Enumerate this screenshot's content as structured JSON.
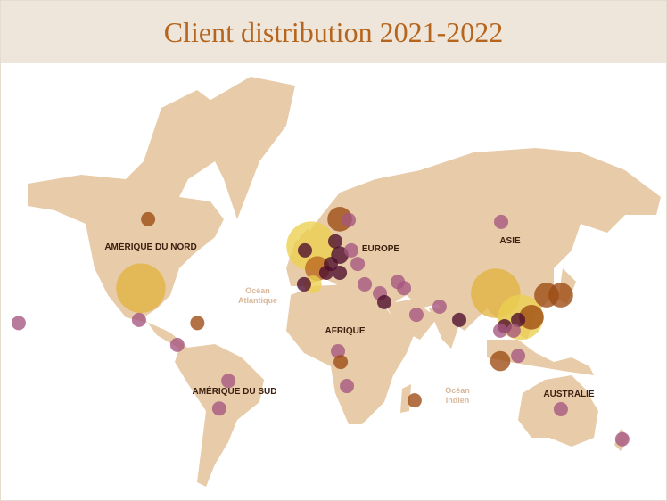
{
  "header": {
    "title": "Client distribution 2021-2022"
  },
  "labels": {
    "north_america": "AMÉRIQUE DU NORD",
    "south_america": "AMÉRIQUE DU SUD",
    "europe": "EUROPE",
    "africa": "AFRIQUE",
    "asia": "ASIE",
    "australia": "AUSTRALIE",
    "atlantic": "Océan Atlantique",
    "indian": "Océan Indien"
  },
  "chart_data": {
    "type": "bubble-map",
    "points": [
      {
        "lon": -157,
        "lat": 21,
        "size": 1,
        "color": "#a5567f"
      },
      {
        "lon": -86,
        "lat": 60.4,
        "size": 1,
        "color": "#9c4a12"
      },
      {
        "lon": -90,
        "lat": 37,
        "size": 12,
        "color": "#e2b440"
      },
      {
        "lon": -91,
        "lat": 22.5,
        "size": 1,
        "color": "#a5567f"
      },
      {
        "lon": -59,
        "lat": 21,
        "size": 1,
        "color": "#9c4a12"
      },
      {
        "lon": -70,
        "lat": 9.9,
        "size": 1,
        "color": "#a5567f"
      },
      {
        "lon": -42,
        "lat": -9,
        "size": 1,
        "color": "#a5567f"
      },
      {
        "lon": -47,
        "lat": -23,
        "size": 1,
        "color": "#a5567f"
      },
      {
        "lon": 3.4,
        "lat": 52.6,
        "size": 12,
        "color": "#ecd050"
      },
      {
        "lon": 19.1,
        "lat": 60.4,
        "size": 3,
        "color": "#9c4a12"
      },
      {
        "lon": 24,
        "lat": 60.2,
        "size": 1,
        "color": "#a5567f"
      },
      {
        "lon": 6.8,
        "lat": 44.8,
        "size": 3,
        "color": "#b8671e"
      },
      {
        "lon": 0,
        "lat": 51.2,
        "size": 1,
        "color": "#4b0c2b"
      },
      {
        "lon": 16.6,
        "lat": 54.1,
        "size": 1,
        "color": "#4b0c2b"
      },
      {
        "lon": 19.1,
        "lat": 49.6,
        "size": 1.5,
        "color": "#4b0c2b"
      },
      {
        "lon": 14.2,
        "lat": 46.5,
        "size": 1,
        "color": "#4b0c2b"
      },
      {
        "lon": 19.1,
        "lat": 43.2,
        "size": 1,
        "color": "#4b0c2b"
      },
      {
        "lon": 11.7,
        "lat": 43.2,
        "size": 1,
        "color": "#4b0c2b"
      },
      {
        "lon": 25.4,
        "lat": 51.2,
        "size": 1,
        "color": "#a5567f"
      },
      {
        "lon": 28.9,
        "lat": 46.5,
        "size": 1,
        "color": "#a5567f"
      },
      {
        "lon": 4.4,
        "lat": 38.6,
        "size": 1.5,
        "color": "#ecd050"
      },
      {
        "lon": -0.5,
        "lat": 38.6,
        "size": 1,
        "color": "#4b0c2b"
      },
      {
        "lon": 32.8,
        "lat": 38.6,
        "size": 1,
        "color": "#a5567f"
      },
      {
        "lon": 41.1,
        "lat": 34.8,
        "size": 1,
        "color": "#a5567f"
      },
      {
        "lon": 43.5,
        "lat": 30.9,
        "size": 1,
        "color": "#4b0c2b"
      },
      {
        "lon": 50.9,
        "lat": 39.6,
        "size": 1,
        "color": "#a5567f"
      },
      {
        "lon": 54.3,
        "lat": 37,
        "size": 1,
        "color": "#a5567f"
      },
      {
        "lon": 61.1,
        "lat": 25,
        "size": 1,
        "color": "#a5567f"
      },
      {
        "lon": 73.8,
        "lat": 28.8,
        "size": 1,
        "color": "#a5567f"
      },
      {
        "lon": 84.6,
        "lat": 22.5,
        "size": 1,
        "color": "#4b0c2b"
      },
      {
        "lon": 107.6,
        "lat": 59.7,
        "size": 1,
        "color": "#a5567f"
      },
      {
        "lon": 104.6,
        "lat": 34.8,
        "size": 12,
        "color": "#e2b440"
      },
      {
        "lon": 118.3,
        "lat": 23.8,
        "size": 10,
        "color": "#ecd050"
      },
      {
        "lon": 124.2,
        "lat": 23.8,
        "size": 3,
        "color": "#9c4a12"
      },
      {
        "lon": 116.9,
        "lat": 22.5,
        "size": 1,
        "color": "#4b0c2b"
      },
      {
        "lon": 109.5,
        "lat": 19.4,
        "size": 1,
        "color": "#4b0c2b"
      },
      {
        "lon": 107.1,
        "lat": 17.2,
        "size": 1,
        "color": "#a5567f"
      },
      {
        "lon": 114.4,
        "lat": 17.2,
        "size": 1,
        "color": "#a5567f"
      },
      {
        "lon": 132.5,
        "lat": 34,
        "size": 3,
        "color": "#9c4a12"
      },
      {
        "lon": 140.3,
        "lat": 34,
        "size": 3,
        "color": "#9c4a12"
      },
      {
        "lon": 116.9,
        "lat": 4.2,
        "size": 1,
        "color": "#a5567f"
      },
      {
        "lon": 107.1,
        "lat": 1.4,
        "size": 2,
        "color": "#9c4a12"
      },
      {
        "lon": 18.1,
        "lat": 6.6,
        "size": 1,
        "color": "#a5567f"
      },
      {
        "lon": 19.6,
        "lat": 0.9,
        "size": 1,
        "color": "#9c4a12"
      },
      {
        "lon": 23,
        "lat": -11.7,
        "size": 1,
        "color": "#a5567f"
      },
      {
        "lon": 60.1,
        "lat": -19,
        "size": 1,
        "color": "#9c4a12"
      },
      {
        "lon": 140.3,
        "lat": -23.3,
        "size": 1,
        "color": "#a5567f"
      },
      {
        "lon": 174,
        "lat": -37,
        "size": 1,
        "color": "#a5567f"
      }
    ]
  }
}
